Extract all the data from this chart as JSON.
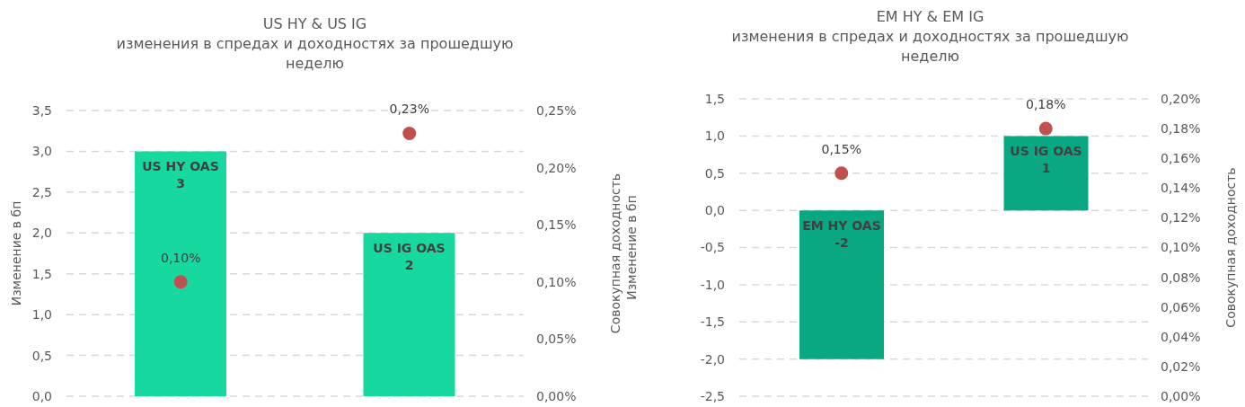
{
  "chart_data": [
    {
      "type": "bar",
      "title": "US HY & US IG",
      "subtitle": "изменения в спредах и доходностях за прошедшую неделю",
      "ylabel": "Изменение в бп",
      "y2label": "Совокупная доходность",
      "categories": [
        "US HY OAS",
        "US IG OAS"
      ],
      "series": [
        {
          "color": "#17d89f",
          "values": [
            3,
            2
          ],
          "value_labels": [
            "3",
            "2"
          ]
        },
        {
          "type": "scatter",
          "axis": "y2",
          "color": "#c0504d",
          "values": [
            0.1,
            0.23
          ],
          "value_labels": [
            "0,10%",
            "0,23%"
          ]
        }
      ],
      "ylim": [
        0,
        3.5
      ],
      "yticks": [
        {
          "value": 0,
          "label": "0,0"
        },
        {
          "value": 0.5,
          "label": "0,5"
        },
        {
          "value": 1,
          "label": "1,0"
        },
        {
          "value": 1.5,
          "label": "1,5"
        },
        {
          "value": 2,
          "label": "2,0"
        },
        {
          "value": 2.5,
          "label": "2,5"
        },
        {
          "value": 3,
          "label": "3,0"
        },
        {
          "value": 3.5,
          "label": "3,5"
        }
      ],
      "y2lim": [
        0,
        0.25
      ],
      "y2ticks": [
        {
          "value": 0,
          "label": "0,00%"
        },
        {
          "value": 0.05,
          "label": "0,05%"
        },
        {
          "value": 0.1,
          "label": "0,10%"
        },
        {
          "value": 0.15,
          "label": "0,15%"
        },
        {
          "value": 0.2,
          "label": "0,20%"
        },
        {
          "value": 0.25,
          "label": "0,25%"
        }
      ],
      "grid": "y",
      "legend": false,
      "marker": "circle",
      "tick_labels": "y"
    },
    {
      "type": "bar",
      "title": "EM HY & EM IG",
      "subtitle": "изменения в спредах и доходностях за прошедшую неделю",
      "ylabel": "Изменение в бп",
      "y2label": "Совокупная доходность",
      "categories": [
        "EM HY OAS",
        "US IG OAS"
      ],
      "series": [
        {
          "color": "#0aa882",
          "values": [
            -2,
            1
          ],
          "value_labels": [
            "-2",
            "1"
          ]
        },
        {
          "type": "scatter",
          "axis": "y2",
          "color": "#c0504d",
          "values": [
            0.15,
            0.18
          ],
          "value_labels": [
            "0,15%",
            "0,18%"
          ]
        }
      ],
      "ylim": [
        -2.5,
        1.5
      ],
      "yticks": [
        {
          "value": -2.5,
          "label": "-2,5"
        },
        {
          "value": -2,
          "label": "-2,0"
        },
        {
          "value": -1.5,
          "label": "-1,5"
        },
        {
          "value": -1,
          "label": "-1,0"
        },
        {
          "value": -0.5,
          "label": "-0,5"
        },
        {
          "value": 0,
          "label": "0,0"
        },
        {
          "value": 0.5,
          "label": "0,5"
        },
        {
          "value": 1,
          "label": "1,0"
        },
        {
          "value": 1.5,
          "label": "1,5"
        }
      ],
      "y2lim": [
        0,
        0.2
      ],
      "y2ticks": [
        {
          "value": 0,
          "label": "0,00%"
        },
        {
          "value": 0.02,
          "label": "0,02%"
        },
        {
          "value": 0.04,
          "label": "0,04%"
        },
        {
          "value": 0.06,
          "label": "0,06%"
        },
        {
          "value": 0.08,
          "label": "0,08%"
        },
        {
          "value": 0.1,
          "label": "0,10%"
        },
        {
          "value": 0.12,
          "label": "0,12%"
        },
        {
          "value": 0.14,
          "label": "0,14%"
        },
        {
          "value": 0.16,
          "label": "0,16%"
        },
        {
          "value": 0.18,
          "label": "0,18%"
        },
        {
          "value": 0.2,
          "label": "0,20%"
        }
      ],
      "grid": "y",
      "legend": false,
      "marker": "circle",
      "tick_labels": "y"
    }
  ]
}
